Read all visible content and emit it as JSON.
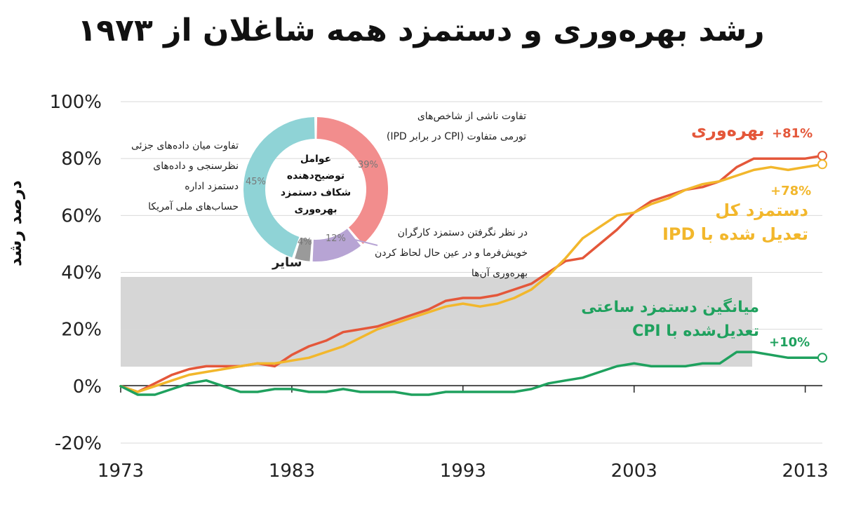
{
  "title": "رشد بهره‌وری و دستمزد همه شاغلان از ۱۹۷۳",
  "chart_data": {
    "type": "line",
    "ylabel": "درصد رشد",
    "xlim": [
      1973,
      2014
    ],
    "ylim": [
      -20,
      100
    ],
    "yticks": [
      -20,
      0,
      20,
      40,
      60,
      80,
      100
    ],
    "ytick_labels": [
      "-20%",
      "0%",
      "20%",
      "40%",
      "60%",
      "80%",
      "100%"
    ],
    "xticks": [
      1973,
      1983,
      1993,
      2003,
      2013
    ],
    "xtick_labels": [
      "1973",
      "1983",
      "1993",
      "2003",
      "2013"
    ],
    "grid": true,
    "series": [
      {
        "name": "بهره‌وری",
        "end_label": "+81%",
        "color": "#e4573a",
        "x": [
          1973,
          1974,
          1975,
          1976,
          1977,
          1978,
          1979,
          1980,
          1981,
          1982,
          1983,
          1984,
          1985,
          1986,
          1987,
          1988,
          1989,
          1990,
          1991,
          1992,
          1993,
          1994,
          1995,
          1996,
          1997,
          1998,
          1999,
          2000,
          2001,
          2002,
          2003,
          2004,
          2005,
          2006,
          2007,
          2008,
          2009,
          2010,
          2011,
          2012,
          2013,
          2014
        ],
        "values": [
          0,
          -2,
          1,
          4,
          6,
          7,
          7,
          7,
          8,
          7,
          11,
          14,
          16,
          19,
          20,
          21,
          23,
          25,
          27,
          30,
          31,
          31,
          32,
          34,
          36,
          40,
          44,
          45,
          50,
          55,
          61,
          65,
          67,
          69,
          70,
          72,
          77,
          80,
          80,
          80,
          80,
          81
        ]
      },
      {
        "name": "دستمزد کل تعدیل شده با IPD",
        "end_label": "+78%",
        "color": "#f2b72c",
        "x": [
          1973,
          1974,
          1975,
          1976,
          1977,
          1978,
          1979,
          1980,
          1981,
          1982,
          1983,
          1984,
          1985,
          1986,
          1987,
          1988,
          1989,
          1990,
          1991,
          1992,
          1993,
          1994,
          1995,
          1996,
          1997,
          1998,
          1999,
          2000,
          2001,
          2002,
          2003,
          2004,
          2005,
          2006,
          2007,
          2008,
          2009,
          2010,
          2011,
          2012,
          2013,
          2014
        ],
        "values": [
          0,
          -2,
          0,
          2,
          4,
          5,
          6,
          7,
          8,
          8,
          9,
          10,
          12,
          14,
          17,
          20,
          22,
          24,
          26,
          28,
          29,
          28,
          29,
          31,
          34,
          39,
          45,
          52,
          56,
          60,
          61,
          64,
          66,
          69,
          71,
          72,
          74,
          76,
          77,
          76,
          77,
          78
        ]
      },
      {
        "name": "میانگین دستمزد ساعتی تعدیل‌شده با CPI",
        "end_label": "+10%",
        "color": "#1fa15e",
        "x": [
          1973,
          1974,
          1975,
          1976,
          1977,
          1978,
          1979,
          1980,
          1981,
          1982,
          1983,
          1984,
          1985,
          1986,
          1987,
          1988,
          1989,
          1990,
          1991,
          1992,
          1993,
          1994,
          1995,
          1996,
          1997,
          1998,
          1999,
          2000,
          2001,
          2002,
          2003,
          2004,
          2005,
          2006,
          2007,
          2008,
          2009,
          2010,
          2011,
          2012,
          2013,
          2014
        ],
        "values": [
          0,
          -3,
          -3,
          -1,
          1,
          2,
          0,
          -2,
          -2,
          -1,
          -1,
          -2,
          -2,
          -1,
          -2,
          -2,
          -2,
          -3,
          -3,
          -2,
          -2,
          -2,
          -2,
          -2,
          -1,
          1,
          2,
          3,
          5,
          7,
          8,
          7,
          7,
          7,
          8,
          8,
          12,
          12,
          11,
          10,
          10,
          10
        ]
      }
    ]
  },
  "labels": {
    "productivity": "بهره‌وری",
    "total_wage_l1": "دستمزد کل",
    "total_wage_l2": "تعدیل شده با IPD",
    "hourly_wage_l1": "میانگین دستمزد ساعتی",
    "hourly_wage_l2": "تعدیل‌شده با CPI"
  },
  "donut": {
    "center_l1": "عوامل",
    "center_l2": "توضیح‌دهنده",
    "center_l3": "شکاف دستمزد",
    "center_l4": "بهره‌وری",
    "segments": [
      {
        "label": "39%",
        "value": 39,
        "color": "#f28d8d"
      },
      {
        "label": "12%",
        "value": 12,
        "color": "#b7a4d4"
      },
      {
        "label": "4%",
        "value": 4,
        "color": "#9a9a9a"
      },
      {
        "label": "45%",
        "value": 45,
        "color": "#8fd3d6"
      }
    ],
    "note_right_l1": "تفاوت ناشی از شاخص‌های",
    "note_right_l2": "تورمی متفاوت (CPI در برابر IPD)",
    "note_bottom_l1": "در نظر نگرفتن دستمزد کارگران",
    "note_bottom_l2": "خویش‌فرما و در عین حال لحاظ کردن",
    "note_bottom_l3": "بهره‌وری آن‌ها",
    "note_left_l1": "تفاوت میان داده‌های جزئی",
    "note_left_l2": "نظرسنجی و داده‌های",
    "note_left_l3": "دستمزد اداره",
    "note_left_l4": "حساب‌های ملی آمریکا",
    "other_label": "سایر"
  },
  "colors": {
    "axis": "#222222",
    "grid": "#d9d9d9",
    "shade": "#d6d6d6"
  }
}
